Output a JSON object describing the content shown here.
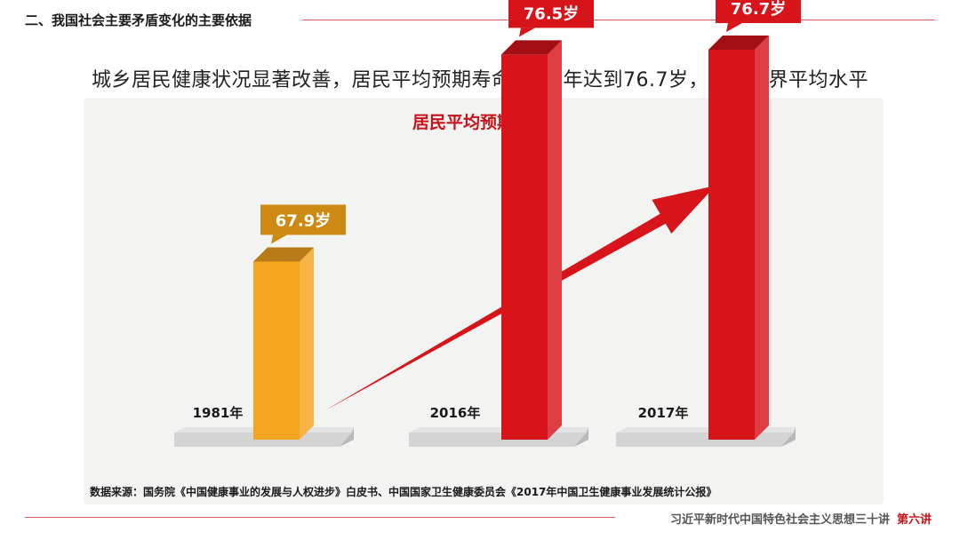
{
  "header": {
    "section_title": "二、我国社会主要矛盾变化的主要依据",
    "headline": "城乡居民健康状况显著改善，居民平均预期寿命2017年达到76.7岁，高于世界平均水平"
  },
  "chart_data": {
    "type": "bar",
    "title": "居民平均预期寿命",
    "categories": [
      "1981年",
      "2016年",
      "2017年"
    ],
    "values": [
      67.9,
      76.5,
      76.7
    ],
    "value_labels": [
      "67.9岁",
      "76.5岁",
      "76.7岁"
    ],
    "unit": "岁",
    "colors": [
      "#f5a41f",
      "#d7141a",
      "#d7141a"
    ],
    "label_colors": [
      "#cc8a12",
      "#d7141a",
      "#d7141a"
    ],
    "trend_arrow": true,
    "grid": false
  },
  "footer": {
    "source": "数据来源：国务院《中国健康事业的发展与人权进步》白皮书、中国国家卫生健康委员会《2017年中国卫生健康事业发展统计公报》",
    "series_name": "习近平新时代中国特色社会主义思想三十讲",
    "lecture_no": "第六讲"
  }
}
